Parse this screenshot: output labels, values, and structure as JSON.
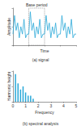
{
  "chart_data": [
    {
      "type": "line",
      "title": "(a) signal",
      "x_label": "Time",
      "y_label": "Amplitude",
      "x": [
        0,
        1,
        2,
        3,
        4,
        5,
        6,
        7,
        8,
        9,
        10,
        11,
        12,
        13,
        14,
        15,
        16,
        17,
        18,
        19,
        20,
        21,
        22,
        23,
        24,
        25,
        26,
        27,
        28,
        29,
        30,
        31,
        32,
        33,
        34,
        35,
        36,
        37,
        38,
        39,
        40
      ],
      "values": [
        3,
        8,
        4,
        6,
        2,
        5,
        3,
        7,
        2,
        3,
        3,
        9,
        4,
        6,
        2,
        5,
        3,
        7,
        2,
        3,
        3,
        8,
        4,
        6,
        2,
        5,
        3,
        6,
        2,
        3,
        3,
        8,
        4,
        6,
        2,
        5,
        3,
        7,
        2,
        3,
        3
      ],
      "color": "#29a8d8",
      "xlim": [
        0,
        40
      ],
      "ylim": [
        0,
        10
      ],
      "xticks": [
        0,
        10,
        20,
        30,
        40
      ],
      "yticks": [
        0,
        5,
        10
      ],
      "tick_labels": false,
      "annotation": {
        "text": "Base period",
        "x": [
          10,
          20
        ]
      }
    },
    {
      "type": "bar",
      "title": "(b) spectral analysis",
      "x_label": "Frequency",
      "y_label": "Harmonic height",
      "x": [
        0.2,
        0.4,
        0.6,
        0.8,
        1.0,
        1.2,
        1.4,
        1.6
      ],
      "values": [
        9,
        6,
        4,
        5,
        3,
        2,
        2,
        1
      ],
      "color": "#29a8d8",
      "xlim": [
        0,
        5
      ],
      "ylim": [
        0,
        10
      ],
      "xticks": [
        0,
        1,
        2,
        3,
        4,
        5
      ],
      "yticks": [
        0,
        5,
        10
      ],
      "tick_labels": "x"
    }
  ]
}
